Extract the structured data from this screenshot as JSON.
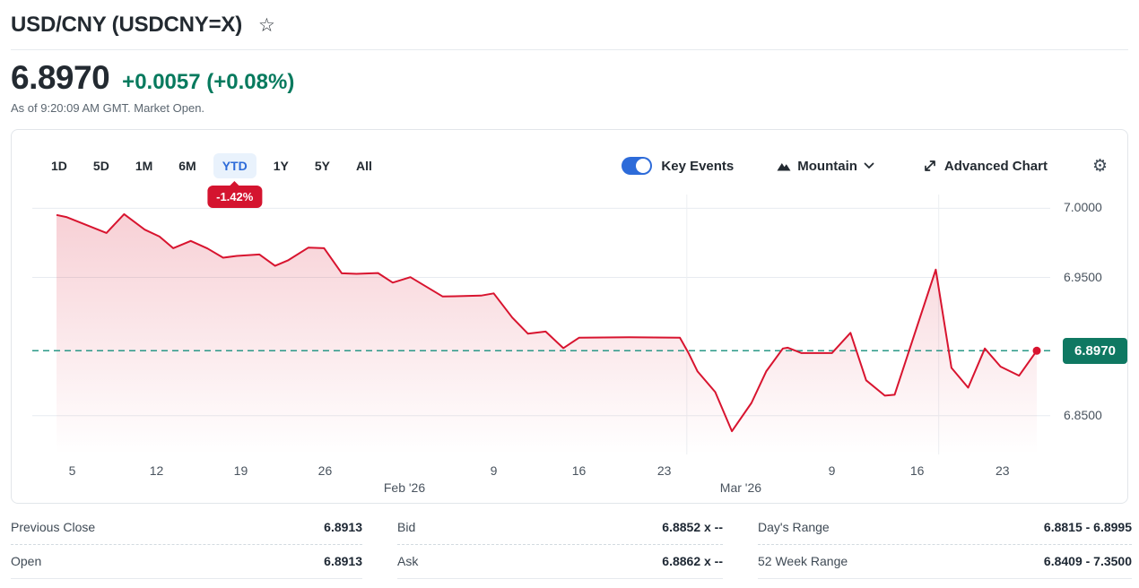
{
  "header": {
    "title": "USD/CNY (USDCNY=X)",
    "price": "6.8970",
    "change_text": "+0.0057 (+0.08%)",
    "as_of": "As of 9:20:09 AM GMT. Market Open."
  },
  "icons": {
    "star": "☆",
    "gear": "⚙"
  },
  "toolbar": {
    "ranges": [
      {
        "label": "1D"
      },
      {
        "label": "5D"
      },
      {
        "label": "1M"
      },
      {
        "label": "6M"
      },
      {
        "label": "YTD",
        "selected": true,
        "badge": "-1.42%"
      },
      {
        "label": "1Y"
      },
      {
        "label": "5Y"
      },
      {
        "label": "All"
      }
    ],
    "key_events_label": "Key Events",
    "key_events_on": true,
    "chart_type_label": "Mountain",
    "advanced_chart_label": "Advanced Chart"
  },
  "chart_data": {
    "type": "area",
    "title": "USD/CNY year-to-date price",
    "xlabel": "",
    "ylabel": "",
    "grid": "horizontal",
    "legend": "none",
    "ytd_change_pct": "-1.42%",
    "y_axis": {
      "range": [
        6.822,
        7.01
      ],
      "gridlines": [
        {
          "value": 7.0,
          "label": "7.0000"
        },
        {
          "value": 6.95,
          "label": "6.9500"
        },
        {
          "value": 6.85,
          "label": "6.8500"
        }
      ]
    },
    "current_price": {
      "value": 6.897,
      "label": "6.8970"
    },
    "x_axis": {
      "ticks": [
        {
          "label": "5",
          "f": 0.016
        },
        {
          "label": "12",
          "f": 0.102
        },
        {
          "label": "19",
          "f": 0.188
        },
        {
          "label": "26",
          "f": 0.274
        },
        {
          "label": "9",
          "f": 0.446
        },
        {
          "label": "16",
          "f": 0.533
        },
        {
          "label": "23",
          "f": 0.62
        },
        {
          "label": "9",
          "f": 0.791
        },
        {
          "label": "16",
          "f": 0.878
        },
        {
          "label": "23",
          "f": 0.965
        }
      ],
      "month_labels": [
        {
          "label": "Feb '26",
          "f": 0.355
        },
        {
          "label": "Mar '26",
          "f": 0.698
        }
      ]
    },
    "event_marker_positions": [
      0.643,
      0.9
    ],
    "series": [
      {
        "name": "USD/CNY",
        "color": "#d8142f",
        "points": [
          [
            0.0,
            6.9952
          ],
          [
            0.01,
            6.9937
          ],
          [
            0.051,
            6.9822
          ],
          [
            0.069,
            6.9958
          ],
          [
            0.09,
            6.9846
          ],
          [
            0.105,
            6.9796
          ],
          [
            0.119,
            6.9712
          ],
          [
            0.137,
            6.9764
          ],
          [
            0.154,
            6.971
          ],
          [
            0.17,
            6.9643
          ],
          [
            0.184,
            6.9656
          ],
          [
            0.207,
            6.9666
          ],
          [
            0.223,
            6.9584
          ],
          [
            0.236,
            6.9623
          ],
          [
            0.257,
            6.9716
          ],
          [
            0.273,
            6.9712
          ],
          [
            0.291,
            6.953
          ],
          [
            0.306,
            6.9526
          ],
          [
            0.328,
            6.9532
          ],
          [
            0.343,
            6.9463
          ],
          [
            0.361,
            6.9502
          ],
          [
            0.394,
            6.9362
          ],
          [
            0.433,
            6.9369
          ],
          [
            0.446,
            6.9385
          ],
          [
            0.465,
            6.921
          ],
          [
            0.481,
            6.9093
          ],
          [
            0.499,
            6.9109
          ],
          [
            0.517,
            6.8989
          ],
          [
            0.533,
            6.9064
          ],
          [
            0.584,
            6.9067
          ],
          [
            0.636,
            6.9065
          ],
          [
            0.645,
            6.895
          ],
          [
            0.654,
            6.882
          ],
          [
            0.672,
            6.8671
          ],
          [
            0.689,
            6.8388
          ],
          [
            0.709,
            6.8593
          ],
          [
            0.724,
            6.882
          ],
          [
            0.741,
            6.8986
          ],
          [
            0.746,
            6.8992
          ],
          [
            0.76,
            6.8953
          ],
          [
            0.791,
            6.8953
          ],
          [
            0.81,
            6.91
          ],
          [
            0.826,
            6.8756
          ],
          [
            0.845,
            6.8645
          ],
          [
            0.855,
            6.8652
          ],
          [
            0.897,
            6.9557
          ],
          [
            0.913,
            6.8846
          ],
          [
            0.93,
            6.8703
          ],
          [
            0.947,
            6.8986
          ],
          [
            0.963,
            6.8855
          ],
          [
            0.982,
            6.879
          ],
          [
            1.0,
            6.897
          ]
        ]
      }
    ],
    "colors": {
      "line": "#d8142f",
      "fill_top": "rgba(216,20,47,0.20)",
      "fill_bottom": "rgba(216,20,47,0)",
      "gridline": "#e7ebf0",
      "event_marker": "#eceff2",
      "current_price_dash": "#2a9887",
      "current_price_badge": "#0f7862"
    }
  },
  "stats": {
    "rows": [
      [
        {
          "label": "Previous Close",
          "value": "6.8913"
        },
        {
          "label": "Bid",
          "value": "6.8852 x --"
        },
        {
          "label": "Day's Range",
          "value": "6.8815 - 6.8995"
        }
      ],
      [
        {
          "label": "Open",
          "value": "6.8913"
        },
        {
          "label": "Ask",
          "value": "6.8862 x --"
        },
        {
          "label": "52 Week Range",
          "value": "6.8409 - 7.3500"
        }
      ]
    ]
  }
}
